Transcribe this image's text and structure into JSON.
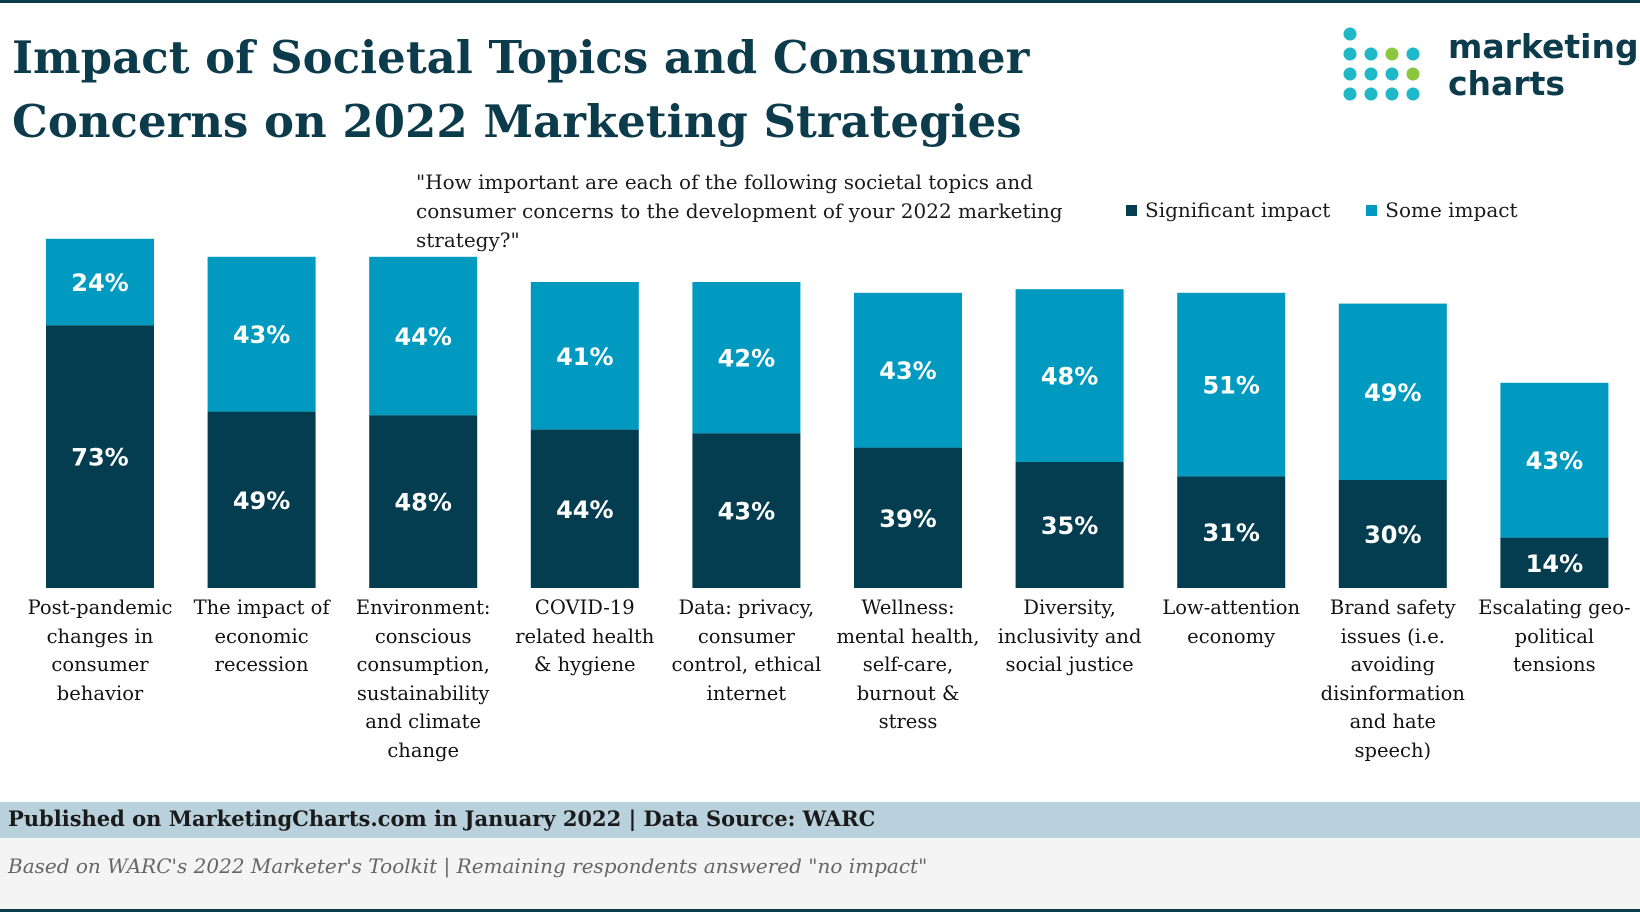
{
  "header": {
    "title_line1": "Impact of Societal Topics and Consumer",
    "title_line2": "Concerns on 2022 Marketing Strategies",
    "logo_line1": "marketing",
    "logo_line2": "charts"
  },
  "colors": {
    "significant": "#033d4f",
    "some": "#0099c0",
    "logo_teal": "#1fb8c8",
    "logo_green": "#8cc63f"
  },
  "chart_data": {
    "type": "bar",
    "stacked": true,
    "question": "\"How important are each of the following societal topics and consumer concerns to the development of your 2022 marketing strategy?\"",
    "categories": [
      "Post-pandemic changes in consumer behavior",
      "The impact of economic recession",
      "Environment: conscious consumption, sustainability and climate change",
      "COVID-19 related health & hygiene",
      "Data: privacy, consumer control, ethical internet",
      "Wellness: mental health, self-care, burnout & stress",
      "Diversity, inclusivity and social justice",
      "Low-attention economy",
      "Brand safety issues (i.e. avoiding disinformation and hate speech)",
      "Escalating geo-political tensions"
    ],
    "category_lines": [
      [
        "Post-pandemic",
        "changes in",
        "consumer",
        "behavior"
      ],
      [
        "The impact of",
        "economic",
        "recession"
      ],
      [
        "Environment:",
        "conscious",
        "consumption,",
        "sustainability",
        "and climate",
        "change"
      ],
      [
        "COVID-19",
        "related health",
        "& hygiene"
      ],
      [
        "Data: privacy,",
        "consumer",
        "control, ethical",
        "internet"
      ],
      [
        "Wellness:",
        "mental health,",
        "self-care,",
        "burnout &",
        "stress"
      ],
      [
        "Diversity,",
        "inclusivity and",
        "social justice"
      ],
      [
        "Low-attention",
        "economy"
      ],
      [
        "Brand safety",
        "issues (i.e.",
        "avoiding",
        "disinformation",
        "and hate",
        "speech)"
      ],
      [
        "Escalating geo-",
        "political",
        "tensions"
      ]
    ],
    "series": [
      {
        "name": "Significant impact",
        "values": [
          73,
          49,
          48,
          44,
          43,
          39,
          35,
          31,
          30,
          14
        ],
        "labels": [
          "73%",
          "49%",
          "48%",
          "44%",
          "43%",
          "39%",
          "35%",
          "31%",
          "30%",
          "14%"
        ]
      },
      {
        "name": "Some impact",
        "values": [
          24,
          43,
          44,
          41,
          42,
          43,
          48,
          51,
          49,
          43
        ],
        "labels": [
          "24%",
          "43%",
          "44%",
          "41%",
          "42%",
          "43%",
          "48%",
          "51%",
          "49%",
          "43%"
        ]
      }
    ],
    "ylim": [
      0,
      100
    ],
    "grid": false,
    "legend_position": "top-right"
  },
  "footer": {
    "published": "Published on MarketingCharts.com in January 2022 | Data Source: WARC",
    "note": "Based on WARC's 2022 Marketer's Toolkit | Remaining respondents answered \"no impact\""
  }
}
